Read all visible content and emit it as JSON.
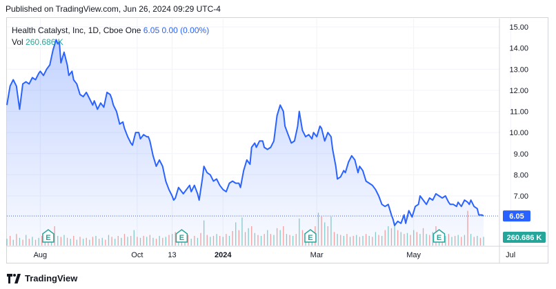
{
  "header": {
    "caption": "Published on TradingView.com, Jun 26, 2024 09:29 UTC-4"
  },
  "legend": {
    "symbol": "Health Catalyst, Inc, 1D, Cboe One",
    "price": "6.05",
    "change": "0.00 (0.00%)",
    "vol_label": "Vol",
    "vol_value": "260.686 K"
  },
  "footer": {
    "brand": "TradingView"
  },
  "colors": {
    "line": "#2962ff",
    "vol_up": "#26a69a",
    "vol_down": "#ef5350",
    "price_label_bg": "#2962ff",
    "vol_label_bg": "#26a69a"
  },
  "chart_data": {
    "type": "area",
    "title": "Health Catalyst, Inc, 1D, Cboe One",
    "y_ticks": [
      "15.00",
      "14.00",
      "13.00",
      "12.00",
      "11.00",
      "10.00",
      "9.00",
      "8.00",
      "7.00",
      "6.05"
    ],
    "ylim": [
      5.0,
      15.3
    ],
    "x_ticks": [
      {
        "label": "Aug",
        "day": 21
      },
      {
        "label": "Oct",
        "day": 82
      },
      {
        "label": "13",
        "day": 104
      },
      {
        "label": "2024",
        "day": 136
      },
      {
        "label": "Mar",
        "day": 195
      },
      {
        "label": "May",
        "day": 256
      },
      {
        "label": "Jul",
        "day": 317
      }
    ],
    "last_price": 6.05,
    "last_price_label": "6.05",
    "last_volume_label": "260.686 K",
    "earnings_markers": [
      {
        "label": "E",
        "day": 26
      },
      {
        "label": "E",
        "day": 110
      },
      {
        "label": "E",
        "day": 191
      },
      {
        "label": "E",
        "day": 272
      }
    ],
    "series": [
      {
        "values": [
          [
            0,
            11.3
          ],
          [
            2,
            12.2
          ],
          [
            4,
            12.5
          ],
          [
            6,
            12.2
          ],
          [
            8,
            11.1
          ],
          [
            10,
            12.3
          ],
          [
            12,
            12.4
          ],
          [
            14,
            12.3
          ],
          [
            16,
            12.6
          ],
          [
            18,
            12.5
          ],
          [
            20,
            12.8
          ],
          [
            21,
            12.9
          ],
          [
            23,
            12.7
          ],
          [
            25,
            13.0
          ],
          [
            27,
            13.2
          ],
          [
            29,
            13.9
          ],
          [
            31,
            14.4
          ],
          [
            32,
            14.2
          ],
          [
            33,
            14.3
          ],
          [
            34,
            13.3
          ],
          [
            36,
            13.8
          ],
          [
            38,
            13.2
          ],
          [
            39,
            12.7
          ],
          [
            41,
            12.9
          ],
          [
            42,
            12.5
          ],
          [
            44,
            12.3
          ],
          [
            46,
            11.8
          ],
          [
            48,
            11.7
          ],
          [
            50,
            11.9
          ],
          [
            52,
            11.6
          ],
          [
            54,
            11.3
          ],
          [
            55,
            11.5
          ],
          [
            57,
            11.1
          ],
          [
            59,
            11.4
          ],
          [
            61,
            11.2
          ],
          [
            63,
            11.9
          ],
          [
            65,
            11.8
          ],
          [
            66,
            11.6
          ],
          [
            67,
            11.3
          ],
          [
            69,
            11.0
          ],
          [
            71,
            10.4
          ],
          [
            73,
            10.5
          ],
          [
            74,
            10.2
          ],
          [
            76,
            9.8
          ],
          [
            78,
            9.5
          ],
          [
            79,
            9.4
          ],
          [
            81,
            10.0
          ],
          [
            83,
            10.0
          ],
          [
            84,
            9.7
          ],
          [
            86,
            9.9
          ],
          [
            88,
            9.8
          ],
          [
            89,
            9.8
          ],
          [
            90,
            9.6
          ],
          [
            92,
            8.9
          ],
          [
            94,
            8.4
          ],
          [
            96,
            8.7
          ],
          [
            98,
            8.4
          ],
          [
            100,
            7.7
          ],
          [
            102,
            7.3
          ],
          [
            104,
            7.0
          ],
          [
            105,
            6.8
          ],
          [
            106,
            6.9
          ],
          [
            108,
            7.4
          ],
          [
            110,
            7.2
          ],
          [
            111,
            7.1
          ],
          [
            113,
            7.3
          ],
          [
            115,
            7.5
          ],
          [
            116,
            7.2
          ],
          [
            118,
            7.5
          ],
          [
            120,
            7.1
          ],
          [
            121,
            6.8
          ],
          [
            123,
            7.8
          ],
          [
            124,
            8.4
          ],
          [
            126,
            8.1
          ],
          [
            128,
            8.0
          ],
          [
            130,
            7.7
          ],
          [
            132,
            7.8
          ],
          [
            134,
            7.5
          ],
          [
            136,
            7.3
          ],
          [
            138,
            7.2
          ],
          [
            140,
            7.6
          ],
          [
            142,
            7.7
          ],
          [
            144,
            7.6
          ],
          [
            146,
            7.6
          ],
          [
            147,
            7.4
          ],
          [
            149,
            8.2
          ],
          [
            151,
            8.7
          ],
          [
            153,
            8.5
          ],
          [
            154,
            9.3
          ],
          [
            156,
            9.5
          ],
          [
            157,
            9.3
          ],
          [
            159,
            9.6
          ],
          [
            161,
            9.6
          ],
          [
            162,
            9.3
          ],
          [
            164,
            9.2
          ],
          [
            166,
            9.3
          ],
          [
            168,
            9.6
          ],
          [
            170,
            10.8
          ],
          [
            172,
            11.3
          ],
          [
            174,
            11.0
          ],
          [
            175,
            10.3
          ],
          [
            177,
            9.9
          ],
          [
            179,
            9.5
          ],
          [
            181,
            9.6
          ],
          [
            183,
            10.3
          ],
          [
            184,
            11.0
          ],
          [
            186,
            10.1
          ],
          [
            188,
            9.8
          ],
          [
            190,
            9.9
          ],
          [
            192,
            9.7
          ],
          [
            193,
            10.0
          ],
          [
            195,
            9.8
          ],
          [
            197,
            10.3
          ],
          [
            198,
            10.2
          ],
          [
            200,
            9.6
          ],
          [
            202,
            10.0
          ],
          [
            204,
            9.8
          ],
          [
            205,
            9.2
          ],
          [
            207,
            8.4
          ],
          [
            208,
            7.8
          ],
          [
            210,
            7.9
          ],
          [
            212,
            8.2
          ],
          [
            213,
            8.1
          ],
          [
            215,
            8.6
          ],
          [
            217,
            8.9
          ],
          [
            219,
            8.7
          ],
          [
            221,
            8.1
          ],
          [
            222,
            8.4
          ],
          [
            224,
            8.2
          ],
          [
            226,
            7.7
          ],
          [
            228,
            7.6
          ],
          [
            230,
            7.5
          ],
          [
            232,
            7.3
          ],
          [
            234,
            7.0
          ],
          [
            236,
            6.6
          ],
          [
            238,
            6.5
          ],
          [
            240,
            6.6
          ],
          [
            242,
            6.1
          ],
          [
            243,
            5.9
          ],
          [
            244,
            5.6
          ],
          [
            246,
            5.8
          ],
          [
            248,
            5.7
          ],
          [
            250,
            6.1
          ],
          [
            251,
            5.7
          ],
          [
            253,
            6.3
          ],
          [
            255,
            6.0
          ],
          [
            257,
            6.5
          ],
          [
            259,
            6.6
          ],
          [
            260,
            7.0
          ],
          [
            262,
            6.8
          ],
          [
            264,
            6.6
          ],
          [
            266,
            6.9
          ],
          [
            268,
            6.8
          ],
          [
            270,
            7.1
          ],
          [
            272,
            7.0
          ],
          [
            274,
            6.9
          ],
          [
            276,
            7.0
          ],
          [
            278,
            6.7
          ],
          [
            279,
            6.6
          ],
          [
            281,
            6.6
          ],
          [
            283,
            6.5
          ],
          [
            284,
            6.7
          ],
          [
            286,
            6.5
          ],
          [
            288,
            6.8
          ],
          [
            290,
            6.7
          ],
          [
            291,
            6.6
          ],
          [
            292,
            6.8
          ],
          [
            294,
            6.5
          ],
          [
            296,
            6.4
          ],
          [
            297,
            6.1
          ],
          [
            299,
            6.1
          ],
          [
            300,
            6.05
          ]
        ]
      }
    ],
    "volume_bars": [
      [
        0,
        0.35,
        1
      ],
      [
        2,
        0.5,
        0
      ],
      [
        4,
        0.3,
        1
      ],
      [
        6,
        0.6,
        0
      ],
      [
        8,
        0.4,
        1
      ],
      [
        10,
        0.3,
        0
      ],
      [
        12,
        0.55,
        1
      ],
      [
        14,
        0.35,
        0
      ],
      [
        16,
        0.45,
        1
      ],
      [
        18,
        0.3,
        0
      ],
      [
        20,
        0.4,
        1
      ],
      [
        22,
        0.5,
        0
      ],
      [
        24,
        0.6,
        1
      ],
      [
        26,
        0.45,
        0
      ],
      [
        28,
        0.7,
        1
      ],
      [
        30,
        1.0,
        0
      ],
      [
        32,
        0.5,
        1
      ],
      [
        34,
        0.45,
        0
      ],
      [
        36,
        0.55,
        1
      ],
      [
        38,
        0.4,
        0
      ],
      [
        40,
        0.35,
        1
      ],
      [
        42,
        0.5,
        0
      ],
      [
        44,
        0.3,
        1
      ],
      [
        46,
        0.45,
        0
      ],
      [
        48,
        0.35,
        1
      ],
      [
        50,
        0.4,
        0
      ],
      [
        52,
        0.3,
        1
      ],
      [
        54,
        0.45,
        0
      ],
      [
        56,
        0.5,
        1
      ],
      [
        58,
        0.35,
        0
      ],
      [
        60,
        0.4,
        1
      ],
      [
        62,
        0.3,
        0
      ],
      [
        64,
        0.55,
        1
      ],
      [
        66,
        0.45,
        0
      ],
      [
        68,
        0.35,
        1
      ],
      [
        70,
        0.5,
        0
      ],
      [
        72,
        0.4,
        1
      ],
      [
        74,
        0.6,
        0
      ],
      [
        76,
        0.45,
        1
      ],
      [
        78,
        0.5,
        0
      ],
      [
        80,
        0.8,
        1
      ],
      [
        82,
        0.45,
        0
      ],
      [
        84,
        0.4,
        1
      ],
      [
        86,
        0.5,
        0
      ],
      [
        88,
        0.45,
        1
      ],
      [
        90,
        0.55,
        0
      ],
      [
        92,
        0.4,
        1
      ],
      [
        94,
        0.35,
        0
      ],
      [
        96,
        0.5,
        1
      ],
      [
        98,
        0.4,
        0
      ],
      [
        100,
        0.45,
        1
      ],
      [
        102,
        0.55,
        0
      ],
      [
        104,
        0.6,
        1
      ],
      [
        106,
        0.7,
        0
      ],
      [
        108,
        0.5,
        1
      ],
      [
        110,
        0.4,
        0
      ],
      [
        112,
        0.45,
        1
      ],
      [
        114,
        0.55,
        0
      ],
      [
        116,
        0.35,
        1
      ],
      [
        118,
        0.5,
        0
      ],
      [
        120,
        0.4,
        1
      ],
      [
        122,
        0.65,
        0
      ],
      [
        124,
        1.3,
        1
      ],
      [
        126,
        0.55,
        0
      ],
      [
        128,
        0.45,
        1
      ],
      [
        130,
        0.5,
        0
      ],
      [
        132,
        0.6,
        1
      ],
      [
        134,
        0.5,
        0
      ],
      [
        136,
        0.45,
        1
      ],
      [
        138,
        0.6,
        0
      ],
      [
        140,
        0.5,
        1
      ],
      [
        142,
        0.75,
        0
      ],
      [
        144,
        1.2,
        1
      ],
      [
        146,
        0.8,
        0
      ],
      [
        148,
        1.45,
        1
      ],
      [
        150,
        0.7,
        0
      ],
      [
        152,
        0.9,
        1
      ],
      [
        154,
        1.0,
        0
      ],
      [
        156,
        0.65,
        1
      ],
      [
        158,
        0.55,
        0
      ],
      [
        160,
        0.5,
        1
      ],
      [
        162,
        0.6,
        0
      ],
      [
        164,
        0.8,
        1
      ],
      [
        166,
        0.6,
        0
      ],
      [
        168,
        0.55,
        1
      ],
      [
        170,
        0.9,
        0
      ],
      [
        172,
        0.8,
        1
      ],
      [
        174,
        1.0,
        0
      ],
      [
        176,
        0.6,
        1
      ],
      [
        178,
        0.55,
        0
      ],
      [
        180,
        0.5,
        1
      ],
      [
        182,
        0.6,
        0
      ],
      [
        184,
        1.4,
        1
      ],
      [
        186,
        0.8,
        0
      ],
      [
        188,
        0.6,
        1
      ],
      [
        190,
        0.55,
        0
      ],
      [
        192,
        0.7,
        1
      ],
      [
        194,
        1.0,
        0
      ],
      [
        196,
        1.7,
        1
      ],
      [
        198,
        1.5,
        0
      ],
      [
        200,
        1.2,
        1
      ],
      [
        202,
        1.0,
        0
      ],
      [
        204,
        1.5,
        1
      ],
      [
        206,
        0.7,
        0
      ],
      [
        208,
        0.6,
        1
      ],
      [
        210,
        0.55,
        0
      ],
      [
        212,
        0.5,
        1
      ],
      [
        214,
        0.6,
        0
      ],
      [
        216,
        0.45,
        1
      ],
      [
        218,
        0.5,
        0
      ],
      [
        220,
        0.55,
        1
      ],
      [
        222,
        0.45,
        0
      ],
      [
        224,
        0.5,
        1
      ],
      [
        226,
        0.6,
        0
      ],
      [
        228,
        0.5,
        1
      ],
      [
        230,
        0.45,
        0
      ],
      [
        232,
        0.7,
        1
      ],
      [
        234,
        0.55,
        0
      ],
      [
        236,
        0.5,
        1
      ],
      [
        238,
        0.8,
        0
      ],
      [
        240,
        1.0,
        1
      ],
      [
        242,
        0.9,
        0
      ],
      [
        244,
        1.2,
        1
      ],
      [
        246,
        0.8,
        0
      ],
      [
        248,
        0.7,
        1
      ],
      [
        250,
        0.6,
        0
      ],
      [
        252,
        0.65,
        1
      ],
      [
        254,
        0.55,
        0
      ],
      [
        256,
        0.8,
        1
      ],
      [
        258,
        0.7,
        0
      ],
      [
        260,
        0.6,
        1
      ],
      [
        262,
        0.9,
        0
      ],
      [
        264,
        0.6,
        1
      ],
      [
        266,
        0.55,
        0
      ],
      [
        268,
        0.7,
        1
      ],
      [
        270,
        1.0,
        0
      ],
      [
        272,
        0.65,
        1
      ],
      [
        274,
        0.55,
        0
      ],
      [
        276,
        0.5,
        1
      ],
      [
        278,
        0.6,
        0
      ],
      [
        280,
        0.45,
        1
      ],
      [
        282,
        0.5,
        0
      ],
      [
        284,
        0.55,
        1
      ],
      [
        286,
        0.45,
        0
      ],
      [
        288,
        0.55,
        1
      ],
      [
        290,
        1.8,
        0
      ],
      [
        292,
        0.6,
        1
      ],
      [
        294,
        0.45,
        0
      ],
      [
        296,
        0.5,
        1
      ],
      [
        298,
        0.4,
        0
      ],
      [
        300,
        0.45,
        1
      ]
    ]
  }
}
